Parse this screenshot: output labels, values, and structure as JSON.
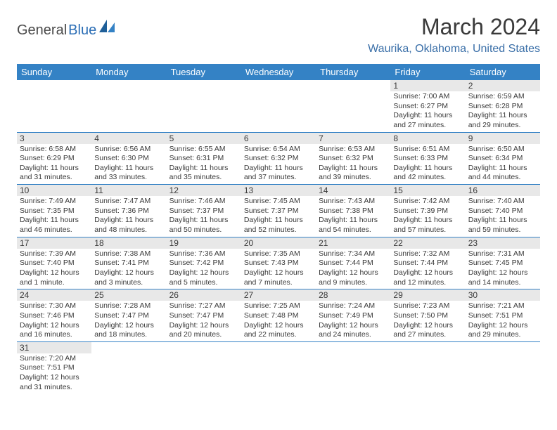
{
  "logo": {
    "part1": "General",
    "part2": "Blue"
  },
  "title": "March 2024",
  "location": "Waurika, Oklahoma, United States",
  "daysOfWeek": [
    "Sunday",
    "Monday",
    "Tuesday",
    "Wednesday",
    "Thursday",
    "Friday",
    "Saturday"
  ],
  "colors": {
    "headerBg": "#3482c5",
    "headerText": "#ffffff",
    "dayNumBg": "#e8e8e8",
    "textColor": "#3a3a3a",
    "locationColor": "#3a6fa8",
    "borderColor": "#3482c5"
  },
  "startDayIndex": 5,
  "days": [
    {
      "n": 1,
      "sunrise": "7:00 AM",
      "sunset": "6:27 PM",
      "daylight": "11 hours and 27 minutes."
    },
    {
      "n": 2,
      "sunrise": "6:59 AM",
      "sunset": "6:28 PM",
      "daylight": "11 hours and 29 minutes."
    },
    {
      "n": 3,
      "sunrise": "6:58 AM",
      "sunset": "6:29 PM",
      "daylight": "11 hours and 31 minutes."
    },
    {
      "n": 4,
      "sunrise": "6:56 AM",
      "sunset": "6:30 PM",
      "daylight": "11 hours and 33 minutes."
    },
    {
      "n": 5,
      "sunrise": "6:55 AM",
      "sunset": "6:31 PM",
      "daylight": "11 hours and 35 minutes."
    },
    {
      "n": 6,
      "sunrise": "6:54 AM",
      "sunset": "6:32 PM",
      "daylight": "11 hours and 37 minutes."
    },
    {
      "n": 7,
      "sunrise": "6:53 AM",
      "sunset": "6:32 PM",
      "daylight": "11 hours and 39 minutes."
    },
    {
      "n": 8,
      "sunrise": "6:51 AM",
      "sunset": "6:33 PM",
      "daylight": "11 hours and 42 minutes."
    },
    {
      "n": 9,
      "sunrise": "6:50 AM",
      "sunset": "6:34 PM",
      "daylight": "11 hours and 44 minutes."
    },
    {
      "n": 10,
      "sunrise": "7:49 AM",
      "sunset": "7:35 PM",
      "daylight": "11 hours and 46 minutes."
    },
    {
      "n": 11,
      "sunrise": "7:47 AM",
      "sunset": "7:36 PM",
      "daylight": "11 hours and 48 minutes."
    },
    {
      "n": 12,
      "sunrise": "7:46 AM",
      "sunset": "7:37 PM",
      "daylight": "11 hours and 50 minutes."
    },
    {
      "n": 13,
      "sunrise": "7:45 AM",
      "sunset": "7:37 PM",
      "daylight": "11 hours and 52 minutes."
    },
    {
      "n": 14,
      "sunrise": "7:43 AM",
      "sunset": "7:38 PM",
      "daylight": "11 hours and 54 minutes."
    },
    {
      "n": 15,
      "sunrise": "7:42 AM",
      "sunset": "7:39 PM",
      "daylight": "11 hours and 57 minutes."
    },
    {
      "n": 16,
      "sunrise": "7:40 AM",
      "sunset": "7:40 PM",
      "daylight": "11 hours and 59 minutes."
    },
    {
      "n": 17,
      "sunrise": "7:39 AM",
      "sunset": "7:40 PM",
      "daylight": "12 hours and 1 minute."
    },
    {
      "n": 18,
      "sunrise": "7:38 AM",
      "sunset": "7:41 PM",
      "daylight": "12 hours and 3 minutes."
    },
    {
      "n": 19,
      "sunrise": "7:36 AM",
      "sunset": "7:42 PM",
      "daylight": "12 hours and 5 minutes."
    },
    {
      "n": 20,
      "sunrise": "7:35 AM",
      "sunset": "7:43 PM",
      "daylight": "12 hours and 7 minutes."
    },
    {
      "n": 21,
      "sunrise": "7:34 AM",
      "sunset": "7:44 PM",
      "daylight": "12 hours and 9 minutes."
    },
    {
      "n": 22,
      "sunrise": "7:32 AM",
      "sunset": "7:44 PM",
      "daylight": "12 hours and 12 minutes."
    },
    {
      "n": 23,
      "sunrise": "7:31 AM",
      "sunset": "7:45 PM",
      "daylight": "12 hours and 14 minutes."
    },
    {
      "n": 24,
      "sunrise": "7:30 AM",
      "sunset": "7:46 PM",
      "daylight": "12 hours and 16 minutes."
    },
    {
      "n": 25,
      "sunrise": "7:28 AM",
      "sunset": "7:47 PM",
      "daylight": "12 hours and 18 minutes."
    },
    {
      "n": 26,
      "sunrise": "7:27 AM",
      "sunset": "7:47 PM",
      "daylight": "12 hours and 20 minutes."
    },
    {
      "n": 27,
      "sunrise": "7:25 AM",
      "sunset": "7:48 PM",
      "daylight": "12 hours and 22 minutes."
    },
    {
      "n": 28,
      "sunrise": "7:24 AM",
      "sunset": "7:49 PM",
      "daylight": "12 hours and 24 minutes."
    },
    {
      "n": 29,
      "sunrise": "7:23 AM",
      "sunset": "7:50 PM",
      "daylight": "12 hours and 27 minutes."
    },
    {
      "n": 30,
      "sunrise": "7:21 AM",
      "sunset": "7:51 PM",
      "daylight": "12 hours and 29 minutes."
    },
    {
      "n": 31,
      "sunrise": "7:20 AM",
      "sunset": "7:51 PM",
      "daylight": "12 hours and 31 minutes."
    }
  ],
  "labels": {
    "sunrise": "Sunrise:",
    "sunset": "Sunset:",
    "daylight": "Daylight:"
  }
}
